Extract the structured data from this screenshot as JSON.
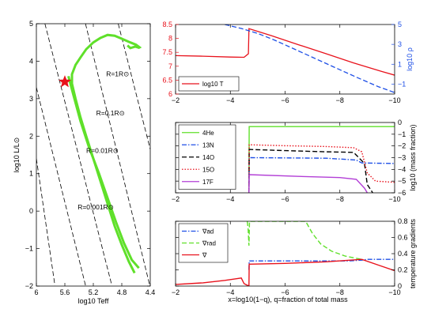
{
  "figure": {
    "shared_xlabel": "x=log10(1−q), q=fraction of total mass"
  },
  "chart_data": [
    {
      "id": "hr",
      "type": "line",
      "xlabel": "log10 Teff",
      "ylabel": "log10 L/L⊙",
      "xlim": [
        6.0,
        4.4
      ],
      "ylim": [
        -2,
        5
      ],
      "xticks": [
        6,
        5.6,
        5.2,
        4.8,
        4.4
      ],
      "yticks": [
        -2,
        -1,
        0,
        1,
        2,
        3,
        4,
        5
      ],
      "xtick_labels": [
        "6",
        "5.6",
        "5.2",
        "4.8",
        "4.4"
      ],
      "ytick_labels": [
        "−2",
        "−1",
        "0",
        "1",
        "2",
        "3",
        "4",
        "5"
      ],
      "colors": {
        "track": "#5fe02a",
        "marker": "#e8121c",
        "radius_lines": "#000000"
      },
      "radius_lines": [
        {
          "label": "R=1R⊙",
          "points": [
            [
              5.31,
              5.0
            ],
            [
              4.41,
              -1.96
            ]
          ]
        },
        {
          "label": "R=0.1R⊙",
          "points": [
            [
              5.88,
              5.0
            ],
            [
              4.94,
              -1.98
            ]
          ]
        },
        {
          "label": "R=0.01R⊙",
          "points": [
            [
              6.0,
              3.3
            ],
            [
              5.31,
              -1.98
            ]
          ]
        },
        {
          "label": "R=0.001R⊙",
          "points": [
            [
              6.0,
              1.4
            ],
            [
              5.74,
              -1.98
            ]
          ]
        },
        {
          "label": "",
          "points": [
            [
              4.85,
              5.0
            ],
            [
              4.4,
              1.65
            ]
          ]
        }
      ],
      "radius_labels": [
        {
          "text": "R=1R⊙",
          "at": [
            5.02,
            3.6
          ]
        },
        {
          "text": "R=0.1R⊙",
          "at": [
            5.16,
            2.55
          ]
        },
        {
          "text": "R=0.01R⊙",
          "at": [
            5.3,
            1.55
          ]
        },
        {
          "text": "R=0.001R⊙",
          "at": [
            5.42,
            0.05
          ]
        }
      ],
      "track": [
        [
          4.72,
          4.42
        ],
        [
          4.68,
          4.35
        ],
        [
          4.61,
          4.39
        ],
        [
          4.56,
          4.36
        ],
        [
          4.55,
          4.37
        ],
        [
          4.6,
          4.44
        ],
        [
          4.68,
          4.5
        ],
        [
          4.8,
          4.6
        ],
        [
          4.9,
          4.68
        ],
        [
          5.0,
          4.7
        ],
        [
          5.1,
          4.62
        ],
        [
          5.2,
          4.5
        ],
        [
          5.3,
          4.32
        ],
        [
          5.38,
          4.1
        ],
        [
          5.45,
          3.9
        ],
        [
          5.5,
          3.65
        ],
        [
          5.5,
          3.4
        ],
        [
          5.45,
          3.0
        ],
        [
          5.38,
          2.5
        ],
        [
          5.3,
          2.0
        ],
        [
          5.2,
          1.4
        ],
        [
          5.1,
          0.8
        ],
        [
          5.0,
          0.2
        ],
        [
          4.9,
          -0.4
        ],
        [
          4.8,
          -0.9
        ],
        [
          4.7,
          -1.35
        ],
        [
          4.62,
          -1.65
        ]
      ],
      "track2": [
        [
          5.55,
          3.6
        ],
        [
          5.48,
          3.1
        ],
        [
          5.38,
          2.4
        ],
        [
          5.26,
          1.7
        ],
        [
          5.12,
          1.0
        ],
        [
          5.0,
          0.35
        ],
        [
          4.88,
          -0.3
        ],
        [
          4.77,
          -0.85
        ],
        [
          4.66,
          -1.3
        ],
        [
          4.56,
          -1.52
        ]
      ],
      "marker": {
        "x": 5.6,
        "y": 3.45,
        "shape": "star"
      }
    },
    {
      "id": "top",
      "type": "line",
      "xlim": [
        -2,
        -10
      ],
      "ylim": [
        6,
        8.5
      ],
      "ylim_right": [
        -2,
        5
      ],
      "xticks": [
        -2,
        -4,
        -6,
        -8,
        -10
      ],
      "yticks": [
        6,
        6.5,
        7,
        7.5,
        8,
        8.5
      ],
      "yticks_right": [
        -1,
        1,
        3,
        5
      ],
      "xtick_labels": [
        "−2",
        "−4",
        "−6",
        "−8",
        "−10"
      ],
      "ytick_labels": [
        "6",
        "6.5",
        "7",
        "7.5",
        "8",
        "8.5"
      ],
      "ytick_labels_right": [
        "−1",
        "1",
        "3",
        "5"
      ],
      "ylabel_right": "log10 ρ",
      "axis_colors": {
        "left": "#e8121c",
        "right": "#1e4fe6"
      },
      "legend": {
        "position": "bottom-left",
        "entries": [
          "log10 T"
        ]
      },
      "series": [
        {
          "name": "log10 T",
          "axis": "left",
          "color": "#e8121c",
          "dash": "solid",
          "x": [
            -2,
            -3,
            -4,
            -4.5,
            -4.66,
            -4.68,
            -5.5,
            -6.5,
            -7.5,
            -8.5,
            -9.5,
            -10
          ],
          "y": [
            7.38,
            7.36,
            7.33,
            7.32,
            7.45,
            8.35,
            8.1,
            7.77,
            7.45,
            7.12,
            6.82,
            6.68
          ]
        },
        {
          "name": "log10 ρ",
          "axis": "right",
          "color": "#1e4fe6",
          "dash": "dashed",
          "x": [
            -3.8,
            -4.4,
            -5.0,
            -5.6,
            -6.2,
            -7.0,
            -7.8,
            -8.6,
            -9.4,
            -10
          ],
          "y": [
            5.0,
            4.6,
            4.1,
            3.45,
            2.7,
            1.7,
            0.7,
            -0.3,
            -1.25,
            -1.85
          ]
        }
      ]
    },
    {
      "id": "mid",
      "type": "line",
      "xlim": [
        -2,
        -10
      ],
      "ylim": [
        -6,
        0
      ],
      "xticks": [
        -2,
        -4,
        -6,
        -8,
        -10
      ],
      "yticks": [
        -6,
        -5,
        -4,
        -3,
        -2,
        -1,
        0
      ],
      "xtick_labels": [
        "−2",
        "−4",
        "−6",
        "−8",
        "−10"
      ],
      "ytick_labels_right": [
        "−6",
        "−5",
        "−4",
        "−3",
        "−2",
        "−1",
        "0"
      ],
      "ylabel_right": "log10 (mass fraction)",
      "legend": {
        "position": "left",
        "entries": [
          "4He",
          "13N",
          "14O",
          "15O",
          "17F"
        ]
      },
      "series": [
        {
          "name": "4He",
          "color": "#5fe02a",
          "dash": "solid",
          "x": [
            -4.68,
            -4.69,
            -10
          ],
          "y": [
            -6,
            -0.35,
            -0.35
          ]
        },
        {
          "name": "13N",
          "color": "#1e4fe6",
          "dash": "dashdot",
          "x": [
            -4.68,
            -4.69,
            -7.5,
            -8.6,
            -8.8,
            -10
          ],
          "y": [
            -6,
            -3.0,
            -3.05,
            -3.2,
            -3.45,
            -3.5
          ]
        },
        {
          "name": "14O",
          "color": "#000000",
          "dash": "dashed",
          "x": [
            -4.68,
            -4.69,
            -6.0,
            -7.5,
            -8.5,
            -8.9,
            -9.0,
            -9.2
          ],
          "y": [
            -6,
            -2.3,
            -2.4,
            -2.5,
            -2.55,
            -3.5,
            -5.3,
            -6
          ]
        },
        {
          "name": "15O",
          "color": "#e8121c",
          "dash": "dotted",
          "x": [
            -4.68,
            -4.69,
            -6.0,
            -7.5,
            -8.5,
            -8.8,
            -9.0,
            -9.3,
            -10
          ],
          "y": [
            -6,
            -1.9,
            -1.98,
            -2.05,
            -2.15,
            -2.5,
            -4.3,
            -5.0,
            -5.1
          ]
        },
        {
          "name": "17F",
          "color": "#b23ed6",
          "dash": "solid",
          "x": [
            -4.68,
            -4.69,
            -6.5,
            -8.0,
            -8.6,
            -8.9,
            -9.0
          ],
          "y": [
            -6,
            -4.45,
            -4.6,
            -4.7,
            -4.85,
            -5.6,
            -6
          ]
        }
      ]
    },
    {
      "id": "bottom",
      "type": "line",
      "xlim": [
        -2,
        -10
      ],
      "ylim": [
        0,
        0.8
      ],
      "xticks": [
        -2,
        -4,
        -6,
        -8,
        -10
      ],
      "yticks": [
        0,
        0.2,
        0.4,
        0.6,
        0.8
      ],
      "xtick_labels": [
        "−2",
        "−4",
        "−6",
        "−8",
        "−10"
      ],
      "ytick_labels_right": [
        "0",
        "0.2",
        "0.4",
        "0.6",
        "0.8"
      ],
      "ylabel_right": "temperature gradients",
      "legend": {
        "position": "top-left",
        "entries": [
          "∇ad",
          "∇rad",
          "∇"
        ]
      },
      "series": [
        {
          "name": "∇ad",
          "color": "#1e4fe6",
          "dash": "dashdot",
          "x": [
            -4.68,
            -4.69,
            -8.3,
            -8.8,
            -9.0,
            -10
          ],
          "y": [
            0.2,
            0.31,
            0.31,
            0.32,
            0.33,
            0.33
          ]
        },
        {
          "name": "∇rad",
          "color": "#5fe02a",
          "dash": "dashed",
          "x": [
            -4.62,
            -4.65,
            -4.68,
            -4.7,
            -6.75,
            -7.0,
            -7.3,
            -7.7,
            -8.2,
            -8.8
          ],
          "y": [
            0.8,
            0.7,
            0.5,
            0.8,
            0.8,
            0.65,
            0.52,
            0.43,
            0.37,
            0.33
          ]
        },
        {
          "name": "∇",
          "color": "#e8121c",
          "dash": "solid",
          "x": [
            -2,
            -3,
            -3.8,
            -4.2,
            -4.4,
            -4.5,
            -4.68,
            -4.69,
            -6.0,
            -7.5,
            -8.8,
            -9.4,
            -10
          ],
          "y": [
            0.02,
            0.04,
            0.07,
            0.09,
            0.1,
            0.03,
            0.0,
            0.27,
            0.28,
            0.3,
            0.33,
            0.26,
            0.19
          ]
        }
      ]
    }
  ]
}
